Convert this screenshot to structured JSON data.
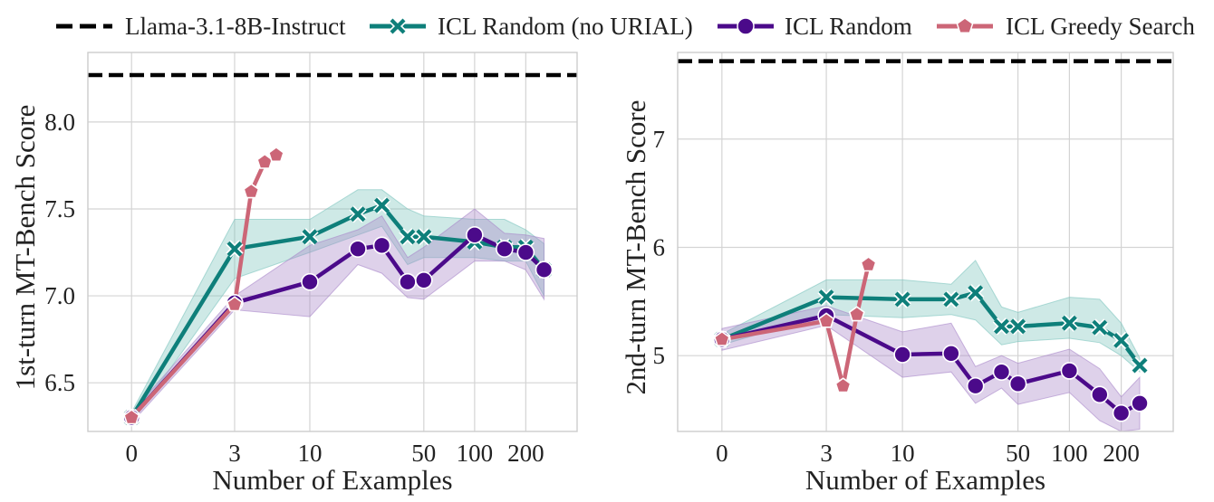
{
  "colors": {
    "baseline": "#000000",
    "icl_random_no_urial": "#0e7f7a",
    "icl_random": "#4b0a8a",
    "icl_greedy": "#cc6677",
    "band_teal": "#7dc4be",
    "band_purple": "#a887c9",
    "grid": "#d4d4d4",
    "frame": "#cccccc"
  },
  "legend": {
    "items": [
      {
        "key": "baseline",
        "label": "Llama-3.1-8B-Instruct",
        "marker": "dashed-line-icon"
      },
      {
        "key": "icl_random_no_urial",
        "label": "ICL Random (no URIAL)",
        "marker": "x-marker-icon"
      },
      {
        "key": "icl_random",
        "label": "ICL Random",
        "marker": "circle-marker-icon"
      },
      {
        "key": "icl_greedy",
        "label": "ICL Greedy Search",
        "marker": "pentagon-marker-icon"
      }
    ]
  },
  "chart_data": [
    {
      "type": "line",
      "xscale": "symlog",
      "xlabel": "Number of Examples",
      "ylabel": "1st-turn MT-Bench Score",
      "xticks": [
        0,
        3,
        10,
        50,
        100,
        200
      ],
      "xtick_labels": [
        "0",
        "3",
        "10",
        "50",
        "100",
        "200"
      ],
      "yticks": [
        6.5,
        7.0,
        7.5,
        8.0
      ],
      "ytick_labels": [
        "6.5",
        "7.0",
        "7.5",
        "8.0"
      ],
      "xlim": [
        -0.8,
        400
      ],
      "ylim": [
        6.22,
        8.4
      ],
      "baseline": {
        "name": "Llama-3.1-8B-Instruct",
        "value": 8.27
      },
      "series": [
        {
          "key": "icl_random_no_urial",
          "name": "ICL Random (no URIAL)",
          "x": [
            0,
            3,
            10,
            20,
            28,
            40,
            50,
            100,
            150,
            200,
            256
          ],
          "y": [
            6.3,
            7.27,
            7.34,
            7.47,
            7.52,
            7.34,
            7.34,
            7.31,
            7.28,
            7.28,
            7.15
          ],
          "lower": [
            6.27,
            7.1,
            7.25,
            7.35,
            7.4,
            7.18,
            7.22,
            7.22,
            7.2,
            7.2,
            7.0
          ],
          "upper": [
            6.33,
            7.44,
            7.44,
            7.61,
            7.61,
            7.5,
            7.46,
            7.44,
            7.44,
            7.38,
            7.3
          ]
        },
        {
          "key": "icl_random",
          "name": "ICL Random",
          "x": [
            0,
            3,
            10,
            20,
            28,
            40,
            50,
            100,
            150,
            200,
            256
          ],
          "y": [
            6.3,
            6.96,
            7.08,
            7.27,
            7.29,
            7.08,
            7.09,
            7.35,
            7.27,
            7.25,
            7.15
          ],
          "lower": [
            6.27,
            6.92,
            6.88,
            7.18,
            7.13,
            6.99,
            6.98,
            7.2,
            7.2,
            7.15,
            6.98
          ],
          "upper": [
            6.33,
            7.0,
            7.29,
            7.38,
            7.46,
            7.22,
            7.28,
            7.5,
            7.36,
            7.35,
            7.33
          ]
        },
        {
          "key": "icl_greedy",
          "name": "ICL Greedy Search",
          "x": [
            0,
            3,
            4,
            5,
            6
          ],
          "y": [
            6.3,
            6.95,
            7.6,
            7.77,
            7.81
          ]
        }
      ]
    },
    {
      "type": "line",
      "xscale": "symlog",
      "xlabel": "Number of Examples",
      "ylabel": "2nd-turn MT-Bench Score",
      "xticks": [
        0,
        3,
        10,
        50,
        100,
        200
      ],
      "xtick_labels": [
        "0",
        "3",
        "10",
        "50",
        "100",
        "200"
      ],
      "yticks": [
        5,
        6,
        7
      ],
      "ytick_labels": [
        "5",
        "6",
        "7"
      ],
      "xlim": [
        -0.8,
        400
      ],
      "ylim": [
        4.3,
        7.8
      ],
      "baseline": {
        "name": "Llama-3.1-8B-Instruct",
        "value": 7.72
      },
      "series": [
        {
          "key": "icl_random_no_urial",
          "name": "ICL Random (no URIAL)",
          "x": [
            0,
            3,
            10,
            20,
            28,
            40,
            50,
            100,
            150,
            200,
            256
          ],
          "y": [
            5.15,
            5.54,
            5.52,
            5.52,
            5.58,
            5.27,
            5.27,
            5.3,
            5.26,
            5.14,
            4.91
          ],
          "lower": [
            5.1,
            5.38,
            5.35,
            5.38,
            5.33,
            5.1,
            5.13,
            5.16,
            5.12,
            5.0,
            4.85
          ],
          "upper": [
            5.2,
            5.7,
            5.7,
            5.66,
            5.88,
            5.45,
            5.4,
            5.54,
            5.52,
            5.3,
            4.98
          ]
        },
        {
          "key": "icl_random",
          "name": "ICL Random",
          "x": [
            0,
            3,
            10,
            20,
            28,
            40,
            50,
            100,
            150,
            200,
            256
          ],
          "y": [
            5.15,
            5.37,
            5.01,
            5.02,
            4.72,
            4.85,
            4.74,
            4.86,
            4.64,
            4.47,
            4.56
          ],
          "lower": [
            5.05,
            5.28,
            4.8,
            4.85,
            4.56,
            4.7,
            4.55,
            4.66,
            4.4,
            4.3,
            4.32
          ],
          "upper": [
            5.25,
            5.46,
            5.22,
            5.3,
            4.9,
            5.0,
            4.93,
            5.06,
            4.88,
            4.62,
            4.8
          ]
        },
        {
          "key": "icl_greedy",
          "name": "ICL Greedy Search",
          "x": [
            0,
            3,
            4,
            5,
            6
          ],
          "y": [
            5.15,
            5.32,
            4.72,
            5.38,
            5.84
          ]
        }
      ]
    }
  ]
}
